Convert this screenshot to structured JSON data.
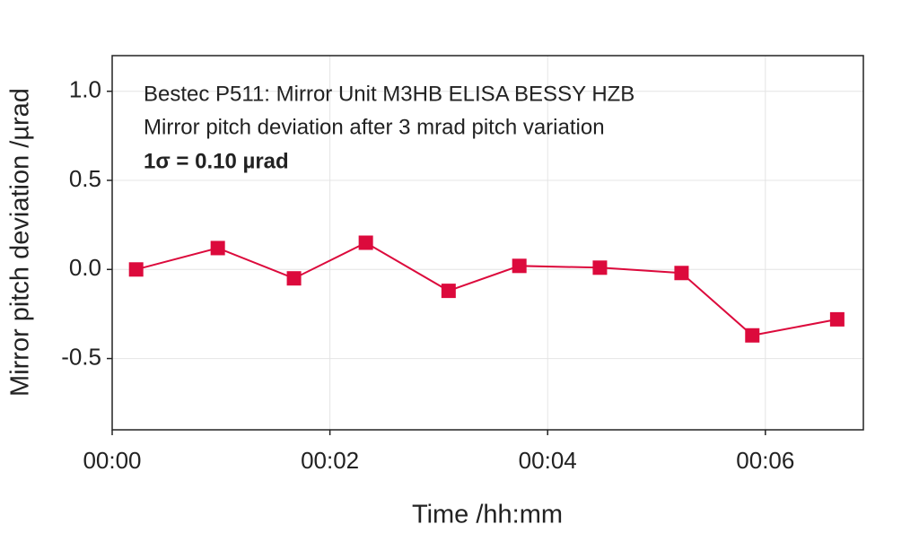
{
  "chart_data": {
    "type": "line",
    "annotations": [
      "Bestec P511: Mirror Unit M3HB ELISA BESSY HZB",
      "Mirror pitch deviation after 3 mrad pitch variation",
      "1σ = 0.10 µrad"
    ],
    "xlabel": "Time /hh:mm",
    "ylabel": "Mirror pitch deviation /µrad",
    "x": [
      0.22,
      0.97,
      1.67,
      2.33,
      3.09,
      3.74,
      4.48,
      5.23,
      5.88,
      6.66
    ],
    "series": [
      {
        "color": "#dc0a3c",
        "values": [
          0.0,
          0.12,
          -0.05,
          0.15,
          -0.12,
          0.02,
          0.01,
          -0.02,
          -0.37,
          -0.28
        ]
      }
    ],
    "xlim": [
      0,
      6.9
    ],
    "xticks": [
      {
        "value": 0,
        "label": "00:00"
      },
      {
        "value": 2,
        "label": "00:02"
      },
      {
        "value": 4,
        "label": "00:04"
      },
      {
        "value": 6,
        "label": "00:06"
      }
    ],
    "ylim": [
      -0.9,
      1.2
    ],
    "yticks": [
      -0.5,
      {
        "value": 0,
        "label": "0.0"
      },
      0.5,
      {
        "value": 1,
        "label": "1.0"
      }
    ],
    "grid": true
  }
}
